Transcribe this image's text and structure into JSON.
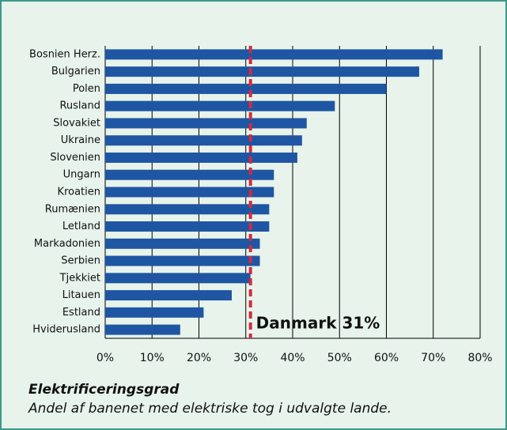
{
  "chart_data": {
    "type": "barh",
    "title": "Elektrificeringsgrad",
    "subtitle": "Andel af banenet med elektriske tog i udvalgte lande.",
    "categories": [
      "Bosnien Herz.",
      "Bulgarien",
      "Polen",
      "Rusland",
      "Slovakiet",
      "Ukraine",
      "Slovenien",
      "Ungarn",
      "Kroatien",
      "Rumænien",
      "Letland",
      "Markadonien",
      "Serbien",
      "Tjekkiet",
      "Litauen",
      "Estland",
      "Hviderusland"
    ],
    "values": [
      72,
      67,
      60,
      49,
      43,
      42,
      41,
      36,
      36,
      35,
      35,
      33,
      33,
      31,
      27,
      21,
      16
    ],
    "color": "#1f56a3",
    "xlim": [
      0,
      80
    ],
    "xticks": [
      {
        "value": 0,
        "label": "0%"
      },
      {
        "value": 10,
        "label": "10%"
      },
      {
        "value": 20,
        "label": "20%"
      },
      {
        "value": 30,
        "label": "30%"
      },
      {
        "value": 40,
        "label": "40%"
      },
      {
        "value": 50,
        "label": "50%"
      },
      {
        "value": 60,
        "label": "60%"
      },
      {
        "value": 70,
        "label": "70%"
      },
      {
        "value": 80,
        "label": "80%"
      }
    ],
    "grid": true,
    "reference_line": {
      "value": 31,
      "label": "Danmark 31%",
      "color": "#d42a3c"
    }
  }
}
